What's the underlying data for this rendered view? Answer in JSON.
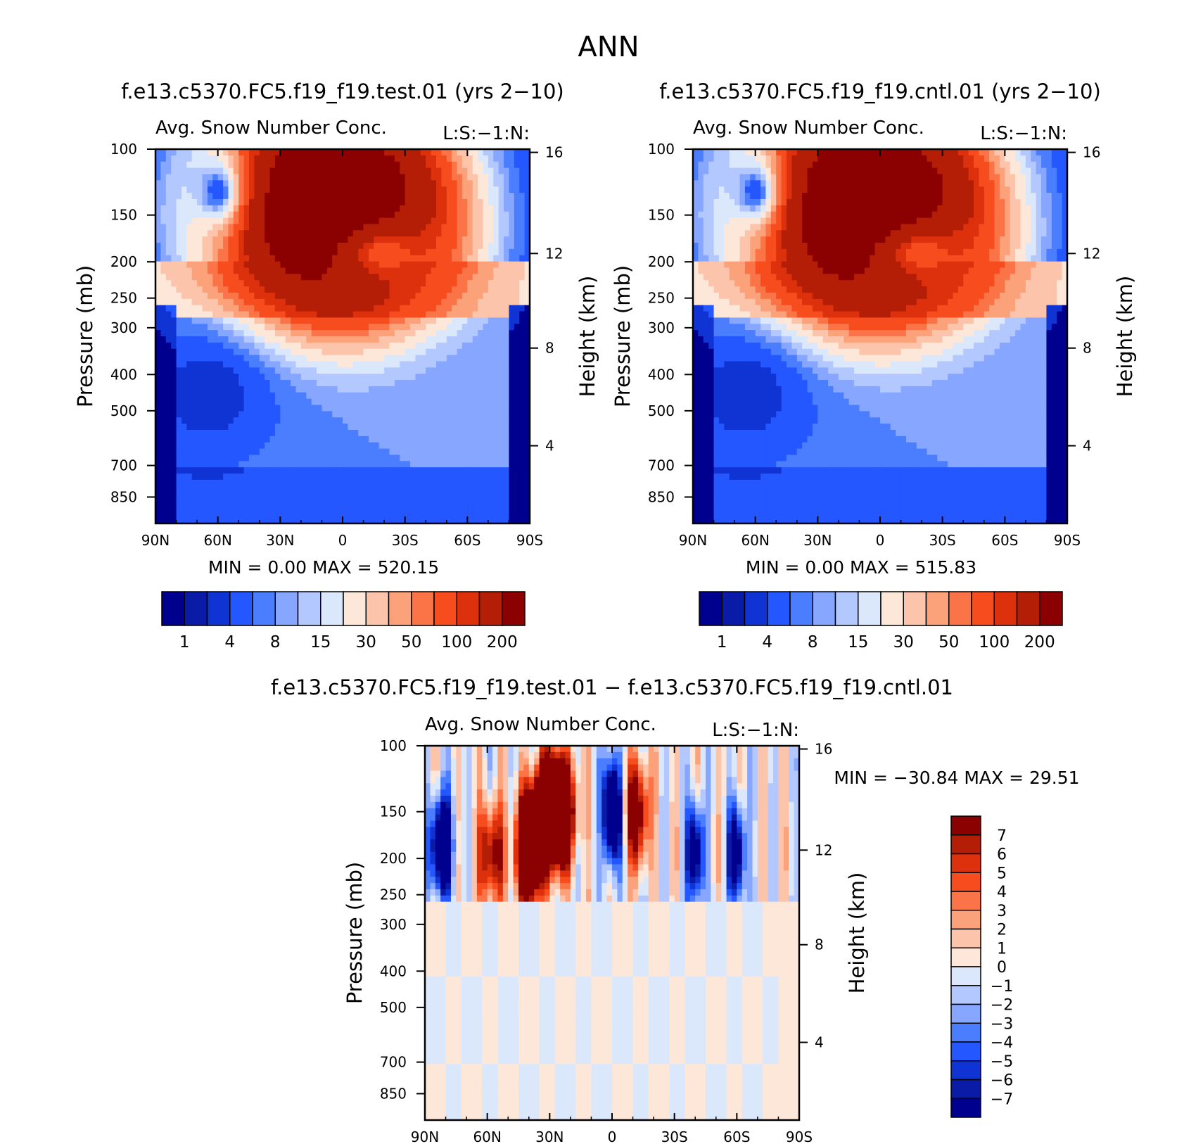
{
  "page": {
    "title": "ANN",
    "diff_title": "f.e13.c5370.FC5.f19_f19.test.01 − f.e13.c5370.FC5.f19_f19.cntl.01"
  },
  "chart_data": [
    {
      "type": "heatmap",
      "title": "f.e13.c5370.FC5.f19_f19.test.01 (yrs 2−10)",
      "subtitle": "Avg. Snow Number Conc.",
      "units_label": "L:S:−1:N:",
      "xlabel": "",
      "ylabel": "Pressure (mb)",
      "y2label": "Height (km)",
      "x_ticks": [
        "90N",
        "60N",
        "30N",
        "0",
        "30S",
        "60S",
        "90S"
      ],
      "y_ticks": [
        "100",
        "150",
        "200",
        "250",
        "300",
        "400",
        "500",
        "700",
        "850"
      ],
      "y2_ticks": [
        "16",
        "12",
        "8",
        "4"
      ],
      "xlim": [
        90,
        -90
      ],
      "ylim": [
        100,
        1000
      ],
      "y_scale": "log",
      "min_label": "MIN =",
      "min_value": "0.00",
      "max_label": "MAX =",
      "max_value": "520.15",
      "levels": [
        "1",
        "4",
        "8",
        "15",
        "30",
        "50",
        "100",
        "200"
      ],
      "colors": [
        "#00008e",
        "#0a1ba8",
        "#1034d4",
        "#2457ff",
        "#4b7dff",
        "#86a6ff",
        "#b3c8ff",
        "#dbe8fb",
        "#fde7d9",
        "#fcc5ab",
        "#fba27b",
        "#fb7448",
        "#f74c1e",
        "#dd300c",
        "#b41e06",
        "#8b0000"
      ],
      "features": [
        {
          "lat": 5,
          "p": 145,
          "width": 28,
          "depth": 0.34,
          "value": 520
        },
        {
          "lat": -20,
          "p": 190,
          "width": 22,
          "depth": 0.18,
          "value": 60
        },
        {
          "lat": 60,
          "p": 130,
          "width": 14,
          "depth": 0.25,
          "value": 2
        },
        {
          "lat": 65,
          "p": 450,
          "width": 28,
          "depth": 0.35,
          "value": 1
        }
      ]
    },
    {
      "type": "heatmap",
      "title": "f.e13.c5370.FC5.f19_f19.cntl.01 (yrs 2−10)",
      "subtitle": "Avg. Snow Number Conc.",
      "units_label": "L:S:−1:N:",
      "xlabel": "",
      "ylabel": "Pressure (mb)",
      "y2label": "Height (km)",
      "x_ticks": [
        "90N",
        "60N",
        "30N",
        "0",
        "30S",
        "60S",
        "90S"
      ],
      "y_ticks": [
        "100",
        "150",
        "200",
        "250",
        "300",
        "400",
        "500",
        "700",
        "850"
      ],
      "y2_ticks": [
        "16",
        "12",
        "8",
        "4"
      ],
      "xlim": [
        90,
        -90
      ],
      "ylim": [
        100,
        1000
      ],
      "y_scale": "log",
      "min_label": "MIN =",
      "min_value": "0.00",
      "max_label": "MAX =",
      "max_value": "515.83",
      "levels": [
        "1",
        "4",
        "8",
        "15",
        "30",
        "50",
        "100",
        "200"
      ],
      "colors": [
        "#00008e",
        "#0a1ba8",
        "#1034d4",
        "#2457ff",
        "#4b7dff",
        "#86a6ff",
        "#b3c8ff",
        "#dbe8fb",
        "#fde7d9",
        "#fcc5ab",
        "#fba27b",
        "#fb7448",
        "#f74c1e",
        "#dd300c",
        "#b41e06",
        "#8b0000"
      ],
      "features": [
        {
          "lat": 5,
          "p": 145,
          "width": 28,
          "depth": 0.34,
          "value": 516
        },
        {
          "lat": -20,
          "p": 190,
          "width": 22,
          "depth": 0.18,
          "value": 60
        },
        {
          "lat": 60,
          "p": 130,
          "width": 14,
          "depth": 0.25,
          "value": 2
        },
        {
          "lat": 65,
          "p": 450,
          "width": 28,
          "depth": 0.35,
          "value": 1
        }
      ]
    },
    {
      "type": "heatmap",
      "title": "",
      "subtitle": "Avg. Snow Number Conc.",
      "units_label": "L:S:−1:N:",
      "xlabel": "",
      "ylabel": "Pressure (mb)",
      "y2label": "Height (km)",
      "x_ticks": [
        "90N",
        "60N",
        "30N",
        "0",
        "30S",
        "60S",
        "90S"
      ],
      "y_ticks": [
        "100",
        "150",
        "200",
        "250",
        "300",
        "400",
        "500",
        "700",
        "850"
      ],
      "y2_ticks": [
        "16",
        "12",
        "8",
        "4"
      ],
      "xlim": [
        90,
        -90
      ],
      "ylim": [
        100,
        1000
      ],
      "y_scale": "log",
      "min_label": "MIN =",
      "min_value": "−30.84",
      "max_label": "MAX =",
      "max_value": "29.51",
      "levels": [
        "7",
        "6",
        "5",
        "4",
        "3",
        "2",
        "1",
        "0",
        "−1",
        "−2",
        "−3",
        "−4",
        "−5",
        "−6",
        "−7"
      ],
      "colors": [
        "#8b0000",
        "#b41e06",
        "#dd300c",
        "#f74c1e",
        "#fb7448",
        "#fba27b",
        "#fcc5ab",
        "#fde7d9",
        "#dbe8fb",
        "#b3c8ff",
        "#86a6ff",
        "#4b7dff",
        "#2457ff",
        "#1034d4",
        "#0a1ba8",
        "#00008e"
      ],
      "features": [
        {
          "lat": 28,
          "p": 150,
          "width": 6,
          "value": 25
        },
        {
          "lat": 40,
          "p": 190,
          "width": 4,
          "value": 20
        },
        {
          "lat": 58,
          "p": 195,
          "width": 5,
          "value": 8
        },
        {
          "lat": 82,
          "p": 185,
          "width": 4,
          "value": -12
        },
        {
          "lat": 0,
          "p": 150,
          "width": 3,
          "value": -15
        },
        {
          "lat": -12,
          "p": 150,
          "width": 4,
          "value": 10
        },
        {
          "lat": -40,
          "p": 195,
          "width": 3,
          "value": -10
        },
        {
          "lat": -60,
          "p": 195,
          "width": 3,
          "value": -10
        }
      ]
    }
  ]
}
